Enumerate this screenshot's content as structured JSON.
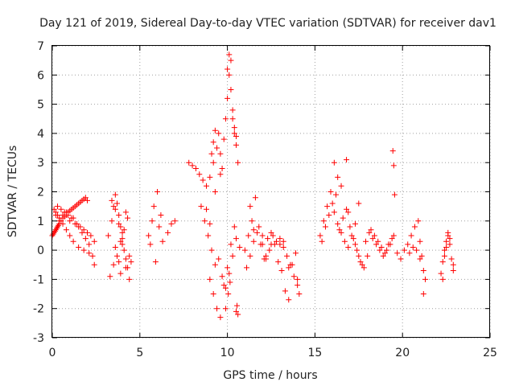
{
  "chart_data": {
    "type": "scatter",
    "title": "Day 121 of 2019, Sidereal Day-to-day VTEC variation (SDTVAR) for receiver dav1",
    "xlabel": "GPS time / hours",
    "ylabel": "SDTVAR / TECUs",
    "xlim": [
      0,
      25
    ],
    "ylim": [
      -3,
      7
    ],
    "xticks": [
      0,
      5,
      10,
      15,
      20,
      25
    ],
    "yticks": [
      -3,
      -2,
      -1,
      0,
      1,
      2,
      3,
      4,
      5,
      6,
      7
    ],
    "grid": true,
    "marker": "+",
    "series": [
      {
        "name": "dav1",
        "color": "#ff0000",
        "x": [
          0.0,
          0.05,
          0.1,
          0.15,
          0.2,
          0.25,
          0.3,
          0.35,
          0.4,
          0.5,
          0.6,
          0.7,
          0.8,
          0.9,
          1.0,
          1.1,
          1.2,
          1.3,
          1.4,
          1.5,
          1.6,
          1.7,
          1.8,
          1.9,
          2.0,
          0.1,
          0.2,
          0.3,
          0.4,
          0.6,
          0.8,
          1.0,
          1.2,
          1.4,
          1.6,
          1.8,
          2.0,
          2.2,
          2.4,
          0.3,
          0.5,
          0.7,
          0.9,
          1.1,
          1.3,
          1.5,
          1.7,
          1.9,
          2.1,
          2.3,
          0.2,
          0.4,
          0.6,
          0.8,
          1.0,
          1.2,
          1.5,
          1.8,
          2.1,
          2.4,
          3.2,
          3.4,
          3.5,
          3.6,
          3.7,
          3.8,
          3.9,
          4.0,
          4.1,
          4.2,
          4.3,
          4.4,
          3.3,
          3.5,
          3.7,
          3.9,
          4.1,
          4.3,
          3.6,
          3.8,
          4.0,
          4.2,
          3.4,
          3.6,
          3.8,
          4.0,
          4.2,
          4.4,
          4.5,
          3.9,
          5.5,
          5.7,
          5.8,
          6.0,
          6.2,
          6.6,
          6.8,
          6.3,
          7.0,
          5.6,
          5.9,
          6.1,
          7.8,
          8.0,
          8.2,
          8.4,
          8.6,
          8.8,
          9.0,
          9.2,
          9.4,
          9.5,
          9.6,
          9.7,
          9.8,
          9.9,
          10.0,
          10.1,
          10.2,
          10.3,
          10.4,
          10.5,
          10.6,
          8.5,
          8.7,
          8.9,
          9.1,
          9.3,
          9.0,
          9.2,
          9.4,
          9.6,
          9.8,
          10.0,
          10.2,
          10.4,
          9.9,
          10.05,
          10.15,
          10.1,
          10.0,
          10.2,
          10.3,
          10.4,
          10.5,
          9.1,
          9.2,
          9.3,
          10.5,
          10.6,
          10.55,
          8.8,
          9.0,
          9.5,
          9.7,
          9.9,
          10.1,
          10.3,
          10.5,
          10.7,
          9.3,
          9.6,
          11.0,
          11.2,
          11.4,
          11.6,
          11.8,
          12.0,
          12.2,
          12.4,
          12.6,
          12.8,
          13.0,
          13.2,
          13.4,
          13.6,
          13.8,
          14.0,
          11.1,
          11.3,
          11.5,
          11.7,
          11.9,
          12.1,
          12.3,
          12.5,
          12.7,
          12.9,
          13.1,
          13.3,
          13.5,
          13.7,
          13.9,
          11.5,
          12.0,
          12.5,
          13.0,
          13.5,
          14.0,
          12.2,
          13.2,
          11.3,
          14.1,
          15.3,
          15.5,
          15.7,
          15.9,
          16.1,
          16.3,
          16.5,
          16.7,
          16.9,
          17.1,
          17.3,
          17.5,
          17.7,
          17.9,
          18.1,
          18.3,
          18.5,
          18.7,
          18.9,
          19.1,
          19.3,
          19.5,
          19.7,
          19.9,
          15.4,
          15.6,
          15.8,
          16.0,
          16.2,
          16.4,
          16.6,
          16.8,
          17.0,
          17.2,
          17.4,
          17.6,
          17.8,
          18.0,
          18.2,
          18.4,
          18.6,
          18.8,
          19.0,
          19.2,
          19.4,
          16.1,
          16.5,
          16.9,
          17.3,
          19.45,
          19.5,
          19.55,
          16.3,
          16.8,
          17.5,
          20.1,
          20.3,
          20.5,
          20.7,
          20.9,
          21.0,
          21.1,
          21.2,
          21.3,
          20.4,
          20.6,
          20.8,
          21.0,
          21.2,
          22.2,
          22.3,
          22.4,
          22.5,
          22.6,
          22.7,
          22.8,
          22.9,
          22.3,
          22.5,
          22.7,
          22.9,
          22.4,
          22.6
        ],
        "y": [
          0.5,
          0.55,
          0.6,
          0.65,
          0.7,
          0.75,
          0.8,
          0.85,
          0.9,
          1.0,
          1.1,
          1.15,
          1.2,
          1.3,
          1.35,
          1.4,
          1.45,
          1.5,
          1.55,
          1.6,
          1.65,
          1.7,
          1.75,
          1.8,
          1.7,
          1.4,
          1.3,
          1.2,
          1.1,
          1.2,
          1.3,
          1.0,
          1.1,
          0.9,
          0.8,
          0.7,
          0.6,
          0.5,
          0.3,
          1.5,
          1.4,
          1.3,
          1.2,
          1.1,
          0.9,
          0.8,
          0.6,
          0.4,
          0.2,
          -0.2,
          1.2,
          1.0,
          0.9,
          0.7,
          0.5,
          0.3,
          0.1,
          0.0,
          -0.1,
          -0.5,
          0.5,
          1.0,
          1.5,
          1.9,
          1.6,
          1.2,
          0.8,
          0.4,
          0.0,
          -0.3,
          -0.6,
          -1.0,
          -0.9,
          -0.5,
          -0.2,
          0.3,
          0.7,
          1.1,
          0.1,
          -0.4,
          0.6,
          1.3,
          1.7,
          1.4,
          0.9,
          0.2,
          -0.6,
          -0.2,
          -0.4,
          -0.8,
          0.5,
          1.0,
          1.5,
          2.0,
          1.2,
          0.6,
          0.9,
          0.3,
          1.0,
          0.2,
          -0.4,
          0.8,
          3.0,
          2.9,
          2.8,
          2.6,
          2.4,
          2.2,
          2.5,
          3.0,
          3.5,
          4.0,
          3.3,
          2.8,
          3.8,
          4.5,
          5.2,
          6.0,
          6.5,
          4.5,
          4.0,
          3.6,
          3.0,
          1.5,
          1.0,
          0.5,
          0.0,
          -0.5,
          -1.0,
          -1.5,
          -2.0,
          -2.3,
          -1.2,
          -0.6,
          0.2,
          0.8,
          -2.0,
          -1.5,
          -1.1,
          6.7,
          6.2,
          5.5,
          4.8,
          4.2,
          3.9,
          3.3,
          3.7,
          4.1,
          -2.1,
          -2.2,
          -1.9,
          1.4,
          0.9,
          -0.3,
          -0.9,
          -1.3,
          -0.8,
          -0.2,
          0.4,
          0.1,
          2.0,
          2.6,
          0.0,
          0.5,
          1.0,
          1.8,
          0.8,
          0.2,
          -0.3,
          0.0,
          0.5,
          0.3,
          0.2,
          0.1,
          -0.2,
          -0.5,
          -0.9,
          -1.2,
          -0.6,
          -0.2,
          0.3,
          0.6,
          0.2,
          -0.3,
          0.4,
          0.6,
          0.2,
          -0.4,
          -0.7,
          -1.4,
          -1.7,
          -0.5,
          -0.1,
          0.7,
          0.5,
          0.2,
          0.4,
          -0.6,
          -1.0,
          -0.2,
          0.3,
          1.5,
          -1.5,
          0.5,
          1.0,
          1.5,
          2.0,
          1.3,
          0.9,
          0.6,
          0.3,
          0.1,
          0.5,
          0.2,
          -0.2,
          -0.5,
          0.3,
          0.6,
          0.4,
          0.2,
          0.0,
          -0.2,
          0.0,
          0.2,
          0.5,
          -0.1,
          -0.3,
          0.3,
          0.8,
          1.2,
          1.6,
          1.9,
          0.7,
          1.1,
          1.4,
          0.8,
          0.4,
          0.0,
          -0.4,
          -0.6,
          -0.2,
          0.7,
          0.5,
          0.3,
          0.1,
          -0.1,
          0.2,
          0.4,
          3.0,
          2.2,
          1.3,
          0.9,
          3.4,
          2.9,
          1.9,
          2.5,
          3.1,
          1.6,
          0.0,
          0.2,
          0.5,
          0.8,
          1.0,
          0.3,
          -0.2,
          -0.7,
          -1.0,
          -0.1,
          0.1,
          0.0,
          -0.3,
          -1.5,
          -0.8,
          -0.4,
          0.0,
          0.3,
          0.5,
          0.2,
          -0.3,
          -0.7,
          -1.0,
          0.1,
          0.4,
          -0.5,
          -0.2,
          0.6
        ]
      }
    ]
  }
}
